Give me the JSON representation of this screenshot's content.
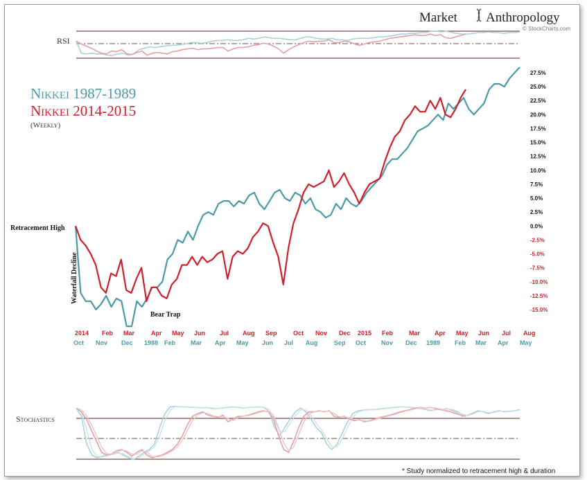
{
  "brand": {
    "word1": "Market",
    "word2": "Anthropology",
    "source": "© StockCharts.com"
  },
  "legend": {
    "line1": "Nikkei 1987-1989",
    "line2": "Nikkei 2014-2015",
    "line3": "(Weekly)"
  },
  "panels": {
    "rsi_label": "RSI",
    "stoch_label": "Stochastics"
  },
  "annotations": {
    "retracement_high": "Retracement High",
    "waterfall": "Waterfall Decline",
    "bear_trap": "Bear Trap"
  },
  "footnote": "* Study normalized to retracement high & duration",
  "colors": {
    "teal": "#4b9aa8",
    "red": "#d01e2a",
    "teal_light": "#a9d2dc",
    "red_light": "#e4a0a4"
  },
  "chart_data": {
    "type": "line",
    "y_axis": {
      "ticks": [
        "27.5%",
        "25.0%",
        "22.5%",
        "20.0%",
        "17.5%",
        "15.0%",
        "12.5%",
        "10.0%",
        "7.5%",
        "5.0%",
        "2.5%",
        "0.0%",
        "-2.5%",
        "-5.0%",
        "-7.5%",
        "-10.0%",
        "-12.5%",
        "-15.0%"
      ],
      "tick_values": [
        27.5,
        25,
        22.5,
        20,
        17.5,
        15,
        12.5,
        10,
        7.5,
        5,
        2.5,
        0,
        -2.5,
        -5,
        -7.5,
        -10,
        -12.5,
        -15
      ],
      "ylim": [
        -15,
        27.5
      ]
    },
    "x_axis_2014": [
      "2014",
      "Feb",
      "Mar",
      "Apr",
      "May",
      "Jun",
      "Jul",
      "Aug",
      "Sep",
      "Oct",
      "Nov",
      "Dec",
      "2015",
      "Feb",
      "Mar",
      "Apr",
      "May",
      "Jun",
      "Jul",
      "Aug"
    ],
    "x_axis_1987": [
      "Oct",
      "Nov",
      "Dec",
      "1988",
      "Feb",
      "Mar",
      "Apr",
      "May",
      "Jun",
      "Jul",
      "Aug",
      "Sep",
      "Oct",
      "Nov",
      "Dec",
      "1989",
      "Feb",
      "Mar",
      "Apr",
      "May"
    ],
    "series": [
      {
        "name": "Nikkei 1987-1989",
        "color": "#4b9aa8",
        "values": [
          0,
          -12,
          -13.5,
          -13.5,
          -15,
          -14,
          -12.5,
          -14.5,
          -13,
          -13.5,
          -18,
          -18,
          -13.5,
          -14.5,
          -13,
          -11,
          -11,
          -10,
          -6,
          -5,
          -2.5,
          -3,
          -1,
          -2.5,
          0,
          2,
          2.5,
          2,
          4,
          4.5,
          4.5,
          3.5,
          4.5,
          4,
          5.5,
          6,
          4,
          3,
          4.5,
          6,
          6.5,
          5,
          4.5,
          6,
          5.5,
          4,
          5,
          3,
          2.5,
          1.5,
          2,
          4,
          3,
          5,
          4,
          3.5,
          4.5,
          6,
          7,
          8,
          9,
          11,
          12,
          12,
          13,
          14,
          15.5,
          17,
          17.5,
          18,
          19,
          20,
          19,
          22,
          21,
          22,
          23,
          21,
          20,
          21,
          22,
          24.5,
          25.5,
          25.5,
          25,
          26.5,
          27.5,
          28.5
        ]
      },
      {
        "name": "Nikkei 2014-2015",
        "color": "#d01e2a",
        "values": [
          0,
          -2.5,
          -3.5,
          -5,
          -7,
          -11,
          -12,
          -8.5,
          -9,
          -6,
          -11.5,
          -12,
          -9.5,
          -7.5,
          -13.5,
          -11,
          -11,
          -12.5,
          -13,
          -10.5,
          -9.5,
          -7,
          -7,
          -5.5,
          -7,
          -5.5,
          -6.5,
          -6,
          -5,
          -4.5,
          -9.5,
          -5.5,
          -4.5,
          -5,
          -4,
          -2,
          -1,
          0.5,
          0,
          -3,
          -5.5,
          -10.5,
          -4,
          0.5,
          3,
          6,
          7.5,
          7,
          7.5,
          8,
          10,
          7,
          8,
          9.5,
          7.5,
          6,
          4,
          6,
          7.5,
          8,
          8.5,
          11.5,
          14,
          16,
          17,
          19,
          20,
          21.5,
          20.5,
          20.5,
          22.5,
          21,
          23,
          20,
          19.5,
          21,
          23,
          24.5
        ]
      }
    ],
    "rsi": {
      "series": [
        {
          "name": "Nikkei 1987-1989",
          "values": [
            62,
            45,
            44,
            45,
            44,
            44,
            42,
            42,
            44,
            45,
            42,
            44,
            50,
            52,
            54,
            53,
            54,
            55,
            56,
            56,
            57,
            58,
            60,
            60,
            59,
            60,
            62,
            63,
            63,
            64,
            63,
            63,
            64,
            66,
            65,
            66,
            68,
            67,
            66,
            66,
            65,
            64,
            64,
            66,
            68,
            68,
            66,
            65,
            65,
            66,
            64,
            64,
            63,
            65,
            66,
            66,
            66,
            67,
            68,
            68,
            69,
            70,
            72,
            72,
            73,
            73,
            74,
            74,
            76,
            76,
            75,
            76,
            74,
            73,
            72,
            72,
            73,
            74,
            74,
            75,
            74,
            74,
            73,
            74,
            74,
            75
          ]
        },
        {
          "name": "Nikkei 2014-2015",
          "values": [
            62,
            58,
            55,
            52,
            48,
            45,
            44,
            48,
            47,
            50,
            44,
            43,
            46,
            48,
            42,
            45,
            46,
            45,
            44,
            47,
            48,
            50,
            51,
            52,
            50,
            51,
            51,
            52,
            53,
            53,
            48,
            51,
            53,
            53,
            54,
            56,
            57,
            59,
            58,
            55,
            51,
            45,
            50,
            54,
            57,
            60,
            62,
            61,
            62,
            62,
            64,
            60,
            60,
            62,
            61,
            58,
            56,
            58,
            60,
            61,
            62,
            64,
            66,
            67,
            68,
            69,
            70,
            71,
            70,
            70,
            72,
            70,
            71,
            67,
            66,
            68,
            70,
            72
          ]
        }
      ]
    },
    "stochastics": {
      "series": [
        {
          "name": "Nikkei 1987-1989",
          "values": [
            95,
            80,
            30,
            10,
            5,
            8,
            10,
            12,
            15,
            10,
            5,
            2,
            8,
            15,
            20,
            30,
            60,
            85,
            97,
            98,
            97,
            97,
            96,
            96,
            95,
            96,
            94,
            94,
            95,
            96,
            97,
            96,
            95,
            96,
            96,
            97,
            96,
            88,
            60,
            45,
            60,
            75,
            88,
            95,
            88,
            75,
            60,
            50,
            30,
            20,
            30,
            50,
            70,
            85,
            90,
            91,
            92,
            92,
            93,
            94,
            95,
            96,
            97,
            97,
            96,
            95,
            94,
            92,
            90,
            93,
            92,
            94,
            91,
            88,
            80,
            82,
            86,
            90,
            88,
            85,
            88,
            90,
            88,
            89,
            90,
            92
          ]
        },
        {
          "name": "Nikkei 2014-2015",
          "values": [
            95,
            88,
            75,
            55,
            35,
            15,
            10,
            12,
            18,
            20,
            15,
            8,
            15,
            20,
            10,
            5,
            8,
            10,
            15,
            20,
            30,
            45,
            65,
            80,
            85,
            88,
            82,
            80,
            78,
            82,
            70,
            75,
            80,
            80,
            82,
            85,
            88,
            90,
            88,
            75,
            45,
            20,
            15,
            35,
            60,
            80,
            88,
            88,
            90,
            88,
            90,
            80,
            78,
            80,
            75,
            72,
            74,
            70,
            72,
            75,
            78,
            80,
            82,
            85,
            88,
            90,
            92,
            95,
            96,
            95,
            96,
            94,
            92,
            90,
            88,
            85,
            82,
            80
          ]
        }
      ]
    },
    "annotation_text": [
      "Retracement High",
      "Waterfall Decline",
      "Bear Trap",
      "* Study normalized to retracement high & duration"
    ]
  }
}
